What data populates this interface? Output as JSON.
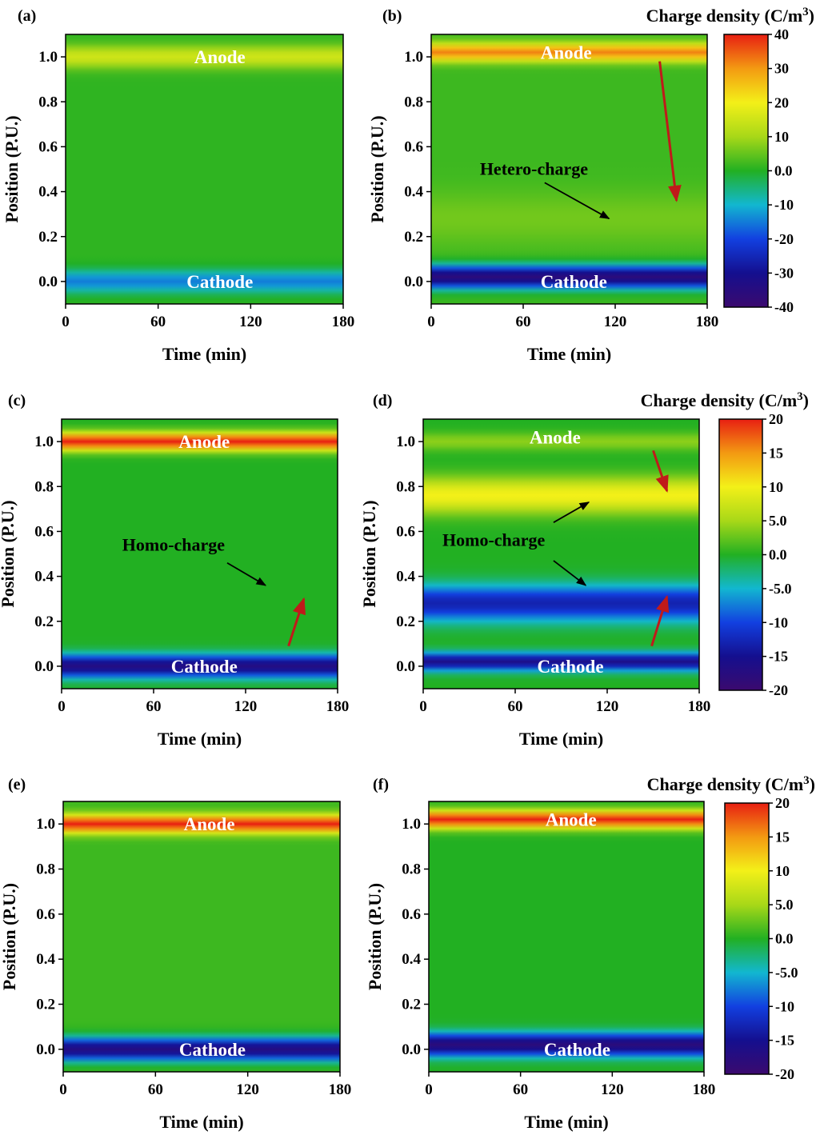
{
  "colors": {
    "scale": [
      "#3b0a6e",
      "#140f8f",
      "#1240e0",
      "#12b7d0",
      "#22b022",
      "#a8d818",
      "#f3f018",
      "#f39a12",
      "#e81f12"
    ],
    "annotation_arrow_black": "#000000",
    "annotation_arrow_red": "#c01a1a",
    "band_label": "#ffffff"
  },
  "chart_data": [
    {
      "type": "heatmap",
      "panel": "(a)",
      "xlabel": "Time (min)",
      "ylabel": "Position (P.U.)",
      "xlim": [
        0,
        180
      ],
      "ylim": [
        -0.1,
        1.1
      ],
      "xticks": [
        "0",
        "60",
        "120",
        "180"
      ],
      "yticks": [
        "0.0",
        "0.2",
        "0.4",
        "0.6",
        "0.8",
        "1.0"
      ],
      "scale_max": 40,
      "base_value": 1,
      "bands": [
        {
          "y": 1.0,
          "width": 0.05,
          "value": 15
        },
        {
          "y": 0.0,
          "width": 0.05,
          "value": -15
        }
      ],
      "labels": [
        {
          "text": "Anode",
          "time": 100,
          "pos": 1.0
        },
        {
          "text": "Cathode",
          "time": 100,
          "pos": 0.0
        }
      ],
      "annotations": [],
      "colorbar": null
    },
    {
      "type": "heatmap",
      "panel": "(b)",
      "xlabel": "Time (min)",
      "ylabel": "Position (P.U.)",
      "xlim": [
        0,
        180
      ],
      "ylim": [
        -0.1,
        1.1
      ],
      "xticks": [
        "0",
        "60",
        "120",
        "180"
      ],
      "yticks": [
        "0.0",
        "0.2",
        "0.4",
        "0.6",
        "0.8",
        "1.0"
      ],
      "scale_max": 40,
      "base_value": 2,
      "bands": [
        {
          "y": 1.02,
          "width": 0.04,
          "value": 32
        },
        {
          "y": 0.28,
          "width": 0.12,
          "value": 6
        },
        {
          "y": 0.02,
          "width": 0.05,
          "value": -36
        }
      ],
      "labels": [
        {
          "text": "Anode",
          "time": 88,
          "pos": 1.02
        },
        {
          "text": "Cathode",
          "time": 93,
          "pos": 0.0
        }
      ],
      "annotations": [
        {
          "text": "Hetero-charge",
          "label_time": 67,
          "label_pos": 0.5,
          "from_time": 74,
          "from_pos": 0.44,
          "to_time": 116,
          "to_pos": 0.28,
          "color": "black"
        },
        {
          "from_time": 149,
          "from_pos": 0.98,
          "to_time": 160,
          "to_pos": 0.36,
          "color": "red"
        }
      ],
      "colorbar": {
        "title": "Charge density (C/m",
        "title_sup": "3",
        "title_end": ")",
        "min": -40,
        "max": 40,
        "ticks": [
          "40",
          "30",
          "20",
          "10",
          "0.0",
          "-10",
          "-20",
          "-30",
          "-40"
        ]
      }
    },
    {
      "type": "heatmap",
      "panel": "(c)",
      "xlabel": "Time (min)",
      "ylabel": "Position (P.U.)",
      "xlim": [
        0,
        180
      ],
      "ylim": [
        -0.1,
        1.1
      ],
      "xticks": [
        "0",
        "60",
        "120",
        "180"
      ],
      "yticks": [
        "0.0",
        "0.2",
        "0.4",
        "0.6",
        "0.8",
        "1.0"
      ],
      "scale_max": 20,
      "base_value": 0,
      "bands": [
        {
          "y": 1.0,
          "width": 0.04,
          "value": 20
        },
        {
          "y": 0.0,
          "width": 0.05,
          "value": -17
        }
      ],
      "labels": [
        {
          "text": "Anode",
          "time": 93,
          "pos": 1.0
        },
        {
          "text": "Cathode",
          "time": 93,
          "pos": 0.0
        }
      ],
      "annotations": [
        {
          "text": "Homo-charge",
          "label_time": 73,
          "label_pos": 0.54,
          "from_time": 108,
          "from_pos": 0.46,
          "to_time": 133,
          "to_pos": 0.36,
          "color": "black"
        },
        {
          "from_time": 148,
          "from_pos": 0.09,
          "to_time": 158,
          "to_pos": 0.3,
          "color": "red"
        }
      ],
      "colorbar": null
    },
    {
      "type": "heatmap",
      "panel": "(d)",
      "xlabel": "Time (min)",
      "ylabel": "Position (P.U.)",
      "xlim": [
        0,
        180
      ],
      "ylim": [
        -0.1,
        1.1
      ],
      "xticks": [
        "0",
        "60",
        "120",
        "180"
      ],
      "yticks": [
        "0.0",
        "0.2",
        "0.4",
        "0.6",
        "0.8",
        "1.0"
      ],
      "scale_max": 20,
      "base_value": 0,
      "bands": [
        {
          "y": 1.0,
          "width": 0.04,
          "value": 4
        },
        {
          "y": 0.76,
          "width": 0.08,
          "value": 10
        },
        {
          "y": 0.28,
          "width": 0.08,
          "value": -13
        },
        {
          "y": 0.02,
          "width": 0.04,
          "value": -16
        }
      ],
      "labels": [
        {
          "text": "Anode",
          "time": 86,
          "pos": 1.02
        },
        {
          "text": "Cathode",
          "time": 96,
          "pos": 0.0
        }
      ],
      "annotations": [
        {
          "text": "Homo-charge",
          "label_time": 46,
          "label_pos": 0.56,
          "from_time": 85,
          "from_pos": 0.64,
          "to_time": 108,
          "to_pos": 0.73,
          "color": "black"
        },
        {
          "from_time": 85,
          "from_pos": 0.47,
          "to_time": 106,
          "to_pos": 0.36,
          "color": "black"
        },
        {
          "from_time": 150,
          "from_pos": 0.96,
          "to_time": 159,
          "to_pos": 0.78,
          "color": "red"
        },
        {
          "from_time": 149,
          "from_pos": 0.09,
          "to_time": 159,
          "to_pos": 0.31,
          "color": "red"
        }
      ],
      "colorbar": {
        "title": "Charge density (C/m",
        "title_sup": "3",
        "title_end": ")",
        "min": -20,
        "max": 20,
        "ticks": [
          "20",
          "15",
          "10",
          "5.0",
          "0.0",
          "-5.0",
          "-10",
          "-15",
          "-20"
        ]
      }
    },
    {
      "type": "heatmap",
      "panel": "(e)",
      "xlabel": "Time (min)",
      "ylabel": "Position (P.U.)",
      "xlim": [
        0,
        180
      ],
      "ylim": [
        -0.1,
        1.1
      ],
      "xticks": [
        "0",
        "60",
        "120",
        "180"
      ],
      "yticks": [
        "0.0",
        "0.2",
        "0.4",
        "0.6",
        "0.8",
        "1.0"
      ],
      "scale_max": 20,
      "base_value": 1,
      "bands": [
        {
          "y": 1.0,
          "width": 0.04,
          "value": 20
        },
        {
          "y": 0.0,
          "width": 0.05,
          "value": -17
        }
      ],
      "labels": [
        {
          "text": "Anode",
          "time": 95,
          "pos": 1.0
        },
        {
          "text": "Cathode",
          "time": 97,
          "pos": 0.0
        }
      ],
      "annotations": [],
      "colorbar": null
    },
    {
      "type": "heatmap",
      "panel": "(f)",
      "xlabel": "Time (min)",
      "ylabel": "Position (P.U.)",
      "xlim": [
        0,
        180
      ],
      "ylim": [
        -0.1,
        1.1
      ],
      "xticks": [
        "0",
        "60",
        "120",
        "180"
      ],
      "yticks": [
        "0.0",
        "0.2",
        "0.4",
        "0.6",
        "0.8",
        "1.0"
      ],
      "scale_max": 20,
      "base_value": 0,
      "bands": [
        {
          "y": 1.02,
          "width": 0.04,
          "value": 20
        },
        {
          "y": 0.02,
          "width": 0.05,
          "value": -18
        }
      ],
      "labels": [
        {
          "text": "Anode",
          "time": 93,
          "pos": 1.02
        },
        {
          "text": "Cathode",
          "time": 97,
          "pos": 0.0
        }
      ],
      "annotations": [],
      "colorbar": {
        "title": "Charge density (C/m",
        "title_sup": "3",
        "title_end": ")",
        "min": -20,
        "max": 20,
        "ticks": [
          "20",
          "15",
          "10",
          "5.0",
          "0.0",
          "-5.0",
          "-10",
          "-15",
          "-20"
        ]
      }
    }
  ]
}
